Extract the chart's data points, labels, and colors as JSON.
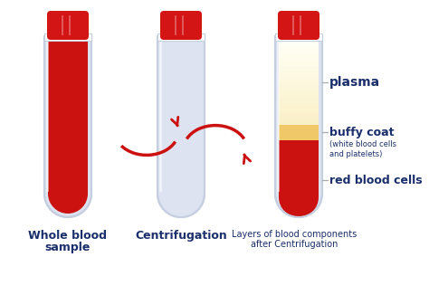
{
  "bg_color": "#ffffff",
  "label_color": "#1a2f6b",
  "line_color": "#aaaaaa",
  "red_cap_color": "#d41515",
  "red_blood_color": "#cc1111",
  "plasma_color_top": "#fdfce8",
  "plasma_color_bottom": "#f5e090",
  "buffy_color": "#f0c868",
  "tube_outline": "#c5cfe0",
  "tube_bg": "#dde3f0",
  "arrow_color": "#cc1111",
  "labels": {
    "tube1_line1": "Whole blood",
    "tube1_line2": "sample",
    "tube2_caption": "Centrifugation",
    "tube3_line1": "Layers of blood components",
    "tube3_line2": "after Centrifugation",
    "plasma": "plasma",
    "buffy_coat": "buffy coat",
    "buffy_sub": "(white blood cells\nand platelets)",
    "red_blood_cells": "red blood cells"
  }
}
